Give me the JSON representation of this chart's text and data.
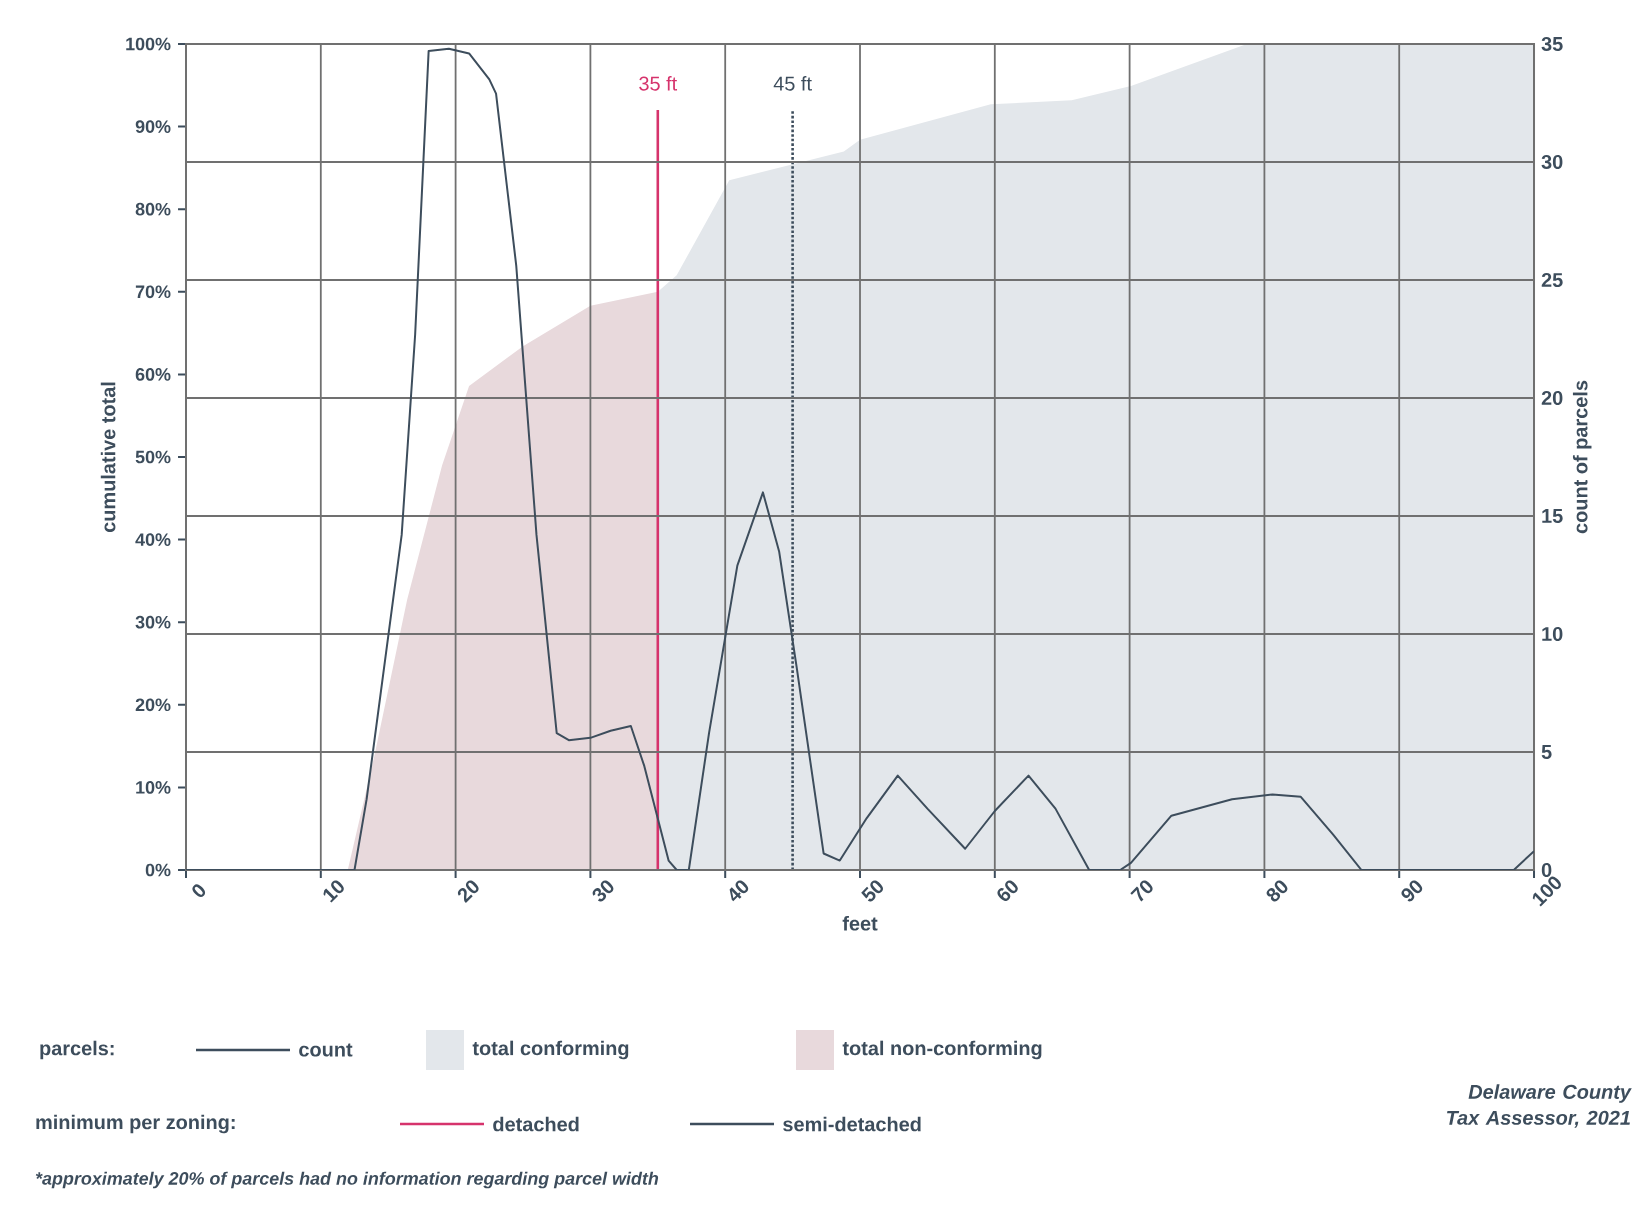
{
  "chart_data": {
    "type": "area",
    "xlabel": "feet",
    "ylabel": "cumulative total",
    "y2label": "count of parcels",
    "legend_title": "parcels:",
    "xlim": [
      0,
      100
    ],
    "xticks": [
      0,
      10,
      20,
      30,
      40,
      50,
      60,
      70,
      80,
      90,
      100
    ],
    "ylim": [
      0,
      100
    ],
    "yticks": [
      {
        "value": 0,
        "label": "0%"
      },
      {
        "value": 10,
        "label": "10%"
      },
      {
        "value": 20,
        "label": "20%"
      },
      {
        "value": 30,
        "label": "30%"
      },
      {
        "value": 40,
        "label": "40%"
      },
      {
        "value": 50,
        "label": "50%"
      },
      {
        "value": 60,
        "label": "60%"
      },
      {
        "value": 70,
        "label": "70%"
      },
      {
        "value": 80,
        "label": "80%"
      },
      {
        "value": 90,
        "label": "90%"
      },
      {
        "value": 100,
        "label": "100%"
      }
    ],
    "y2lim": [
      0,
      35
    ],
    "y2ticks": [
      0,
      5,
      10,
      15,
      20,
      25,
      30,
      35
    ],
    "grid": true,
    "legend": "bottom",
    "series": [
      {
        "name": "total conforming",
        "color": "#e3e7eb",
        "x": [
          35,
          36.4,
          40.3,
          48.8,
          50,
          59.7,
          65.7,
          70.1,
          78.7,
          100
        ],
        "values": [
          70,
          72,
          83.5,
          87,
          88.4,
          92.7,
          93.2,
          94.9,
          100,
          100
        ]
      },
      {
        "name": "total non-conforming",
        "color": "#e8d9dc",
        "x": [
          12,
          14,
          16.4,
          19,
          21,
          25,
          30,
          35
        ],
        "values": [
          0,
          14,
          32.7,
          49,
          58.6,
          63.4,
          68.3,
          70
        ]
      },
      {
        "name": "count",
        "type": "line",
        "axis": "y2",
        "color": "#3d4d5c",
        "x": [
          0,
          12.5,
          13.4,
          16,
          17,
          18,
          19.5,
          21,
          22.5,
          23,
          24.5,
          26,
          27.5,
          28.4,
          30,
          31.5,
          33,
          34,
          35.8,
          36.4,
          37.3,
          38.8,
          40.9,
          42.8,
          44,
          45.3,
          47.3,
          48.5,
          50.5,
          52.8,
          55,
          57.8,
          60,
          62.5,
          64.5,
          67,
          69.3,
          70.1,
          73.1,
          77.6,
          80.6,
          82.7,
          85.1,
          87.2,
          98.5,
          100
        ],
        "values": [
          0,
          0,
          3,
          14.2,
          22.7,
          34.7,
          34.8,
          34.6,
          33.5,
          32.9,
          25.6,
          14.2,
          5.8,
          5.5,
          5.6,
          5.9,
          6.1,
          4.4,
          0.4,
          0,
          0,
          5.8,
          12.9,
          16,
          13.5,
          8.6,
          0.7,
          0.4,
          2.2,
          4.0,
          2.6,
          0.9,
          2.5,
          4.0,
          2.6,
          0,
          0,
          0.3,
          2.3,
          3.0,
          3.2,
          3.1,
          1.5,
          0,
          0,
          0.8
        ]
      }
    ],
    "ref_lines": [
      {
        "axis": "x",
        "value": 35,
        "label": "35 ft",
        "color": "#d6336c"
      },
      {
        "axis": "x",
        "value": 45,
        "label": "45 ft",
        "color": "#3d4d5c",
        "line_style": "dotted"
      }
    ],
    "annotations": [
      "minimum per zoning:",
      "detached",
      "semi-detached",
      "Delaware County Tax Assessor, 2021",
      "*approximately 20% of parcels had no information regarding parcel width"
    ]
  }
}
